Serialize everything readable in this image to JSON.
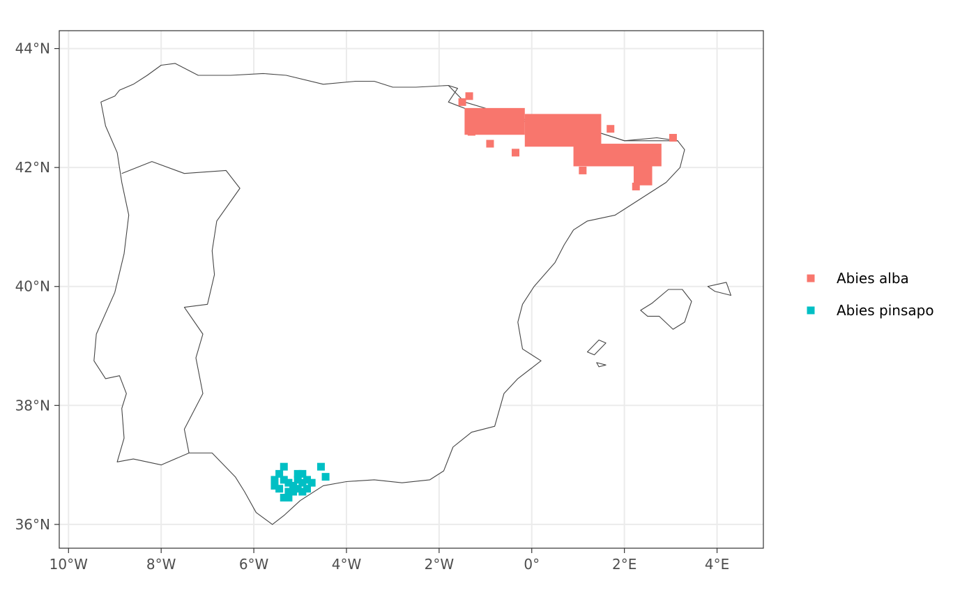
{
  "colors": {
    "panel_border": "#333333",
    "grid": "#ebebeb",
    "coastline": "#444444",
    "abies_alba": "#F8766D",
    "abies_pinsapo": "#00BFC4"
  },
  "chart_data": {
    "type": "scatter",
    "subtype": "map",
    "title": "",
    "xlabel": "",
    "ylabel": "",
    "xlim": [
      -10.2,
      5.0
    ],
    "ylim": [
      35.6,
      44.3
    ],
    "x_ticks": [
      -10,
      -8,
      -6,
      -4,
      -2,
      0,
      2,
      4
    ],
    "x_tick_labels": [
      "10°W",
      "8°W",
      "6°W",
      "4°W",
      "2°W",
      "0°",
      "2°E",
      "4°E"
    ],
    "y_ticks": [
      36,
      38,
      40,
      42,
      44
    ],
    "y_tick_labels": [
      "36°N",
      "38°N",
      "40°N",
      "42°N",
      "44°N"
    ],
    "grid": true,
    "legend_position": "right",
    "series": [
      {
        "name": "Abies alba",
        "color": "#F8766D",
        "marker": "square",
        "regions": [
          {
            "lon": [
              -1.45,
              -0.15
            ],
            "lat": [
              42.55,
              43.0
            ]
          },
          {
            "lon": [
              -0.15,
              1.5
            ],
            "lat": [
              42.35,
              42.9
            ]
          },
          {
            "lon": [
              0.9,
              2.8
            ],
            "lat": [
              42.02,
              42.4
            ]
          },
          {
            "lon": [
              2.2,
              2.6
            ],
            "lat": [
              41.7,
              42.1
            ]
          }
        ],
        "points": [
          {
            "lon": -1.5,
            "lat": 43.1
          },
          {
            "lon": -1.35,
            "lat": 43.2
          },
          {
            "lon": -0.9,
            "lat": 42.4
          },
          {
            "lon": -0.35,
            "lat": 42.25
          },
          {
            "lon": 1.1,
            "lat": 41.95
          },
          {
            "lon": 2.25,
            "lat": 41.68
          },
          {
            "lon": 3.05,
            "lat": 42.5
          },
          {
            "lon": 2.7,
            "lat": 42.3
          },
          {
            "lon": 1.7,
            "lat": 42.65
          },
          {
            "lon": -1.3,
            "lat": 42.6
          }
        ]
      },
      {
        "name": "Abies pinsapo",
        "color": "#00BFC4",
        "marker": "square",
        "points": [
          {
            "lon": -5.55,
            "lat": 36.75
          },
          {
            "lon": -5.55,
            "lat": 36.65
          },
          {
            "lon": -5.45,
            "lat": 36.85
          },
          {
            "lon": -5.45,
            "lat": 36.6
          },
          {
            "lon": -5.35,
            "lat": 36.97
          },
          {
            "lon": -5.35,
            "lat": 36.75
          },
          {
            "lon": -5.35,
            "lat": 36.45
          },
          {
            "lon": -5.25,
            "lat": 36.7
          },
          {
            "lon": -5.25,
            "lat": 36.55
          },
          {
            "lon": -5.25,
            "lat": 36.45
          },
          {
            "lon": -5.15,
            "lat": 36.65
          },
          {
            "lon": -5.15,
            "lat": 36.55
          },
          {
            "lon": -5.05,
            "lat": 36.85
          },
          {
            "lon": -5.05,
            "lat": 36.75
          },
          {
            "lon": -5.05,
            "lat": 36.6
          },
          {
            "lon": -4.95,
            "lat": 36.85
          },
          {
            "lon": -4.95,
            "lat": 36.7
          },
          {
            "lon": -4.95,
            "lat": 36.55
          },
          {
            "lon": -4.85,
            "lat": 36.75
          },
          {
            "lon": -4.85,
            "lat": 36.6
          },
          {
            "lon": -4.75,
            "lat": 36.7
          },
          {
            "lon": -4.55,
            "lat": 36.97
          },
          {
            "lon": -4.45,
            "lat": 36.8
          }
        ]
      }
    ],
    "coastlines": {
      "iberia": [
        [
          -9.3,
          43.1
        ],
        [
          -9.0,
          43.2
        ],
        [
          -8.9,
          43.3
        ],
        [
          -8.6,
          43.4
        ],
        [
          -8.3,
          43.55
        ],
        [
          -8.0,
          43.72
        ],
        [
          -7.7,
          43.75
        ],
        [
          -7.2,
          43.55
        ],
        [
          -6.5,
          43.55
        ],
        [
          -5.8,
          43.58
        ],
        [
          -5.3,
          43.55
        ],
        [
          -4.5,
          43.4
        ],
        [
          -3.8,
          43.45
        ],
        [
          -3.4,
          43.45
        ],
        [
          -3.0,
          43.35
        ],
        [
          -2.5,
          43.35
        ],
        [
          -1.8,
          43.38
        ],
        [
          -1.6,
          43.33
        ],
        [
          -1.8,
          43.1
        ],
        [
          -1.3,
          42.95
        ],
        [
          -0.8,
          42.8
        ],
        [
          -0.3,
          42.8
        ],
        [
          0.3,
          42.7
        ],
        [
          0.7,
          42.8
        ],
        [
          1.4,
          42.6
        ],
        [
          2.0,
          42.45
        ],
        [
          2.7,
          42.45
        ],
        [
          3.15,
          42.45
        ],
        [
          3.3,
          42.3
        ],
        [
          3.2,
          42.0
        ],
        [
          2.9,
          41.75
        ],
        [
          2.3,
          41.45
        ],
        [
          1.8,
          41.2
        ],
        [
          1.2,
          41.1
        ],
        [
          0.9,
          40.95
        ],
        [
          0.7,
          40.7
        ],
        [
          0.5,
          40.4
        ],
        [
          0.05,
          40.0
        ],
        [
          -0.2,
          39.7
        ],
        [
          -0.3,
          39.4
        ],
        [
          -0.2,
          38.95
        ],
        [
          0.2,
          38.75
        ],
        [
          -0.3,
          38.45
        ],
        [
          -0.6,
          38.2
        ],
        [
          -0.8,
          37.65
        ],
        [
          -1.3,
          37.55
        ],
        [
          -1.7,
          37.3
        ],
        [
          -1.9,
          36.9
        ],
        [
          -2.2,
          36.75
        ],
        [
          -2.8,
          36.7
        ],
        [
          -3.4,
          36.75
        ],
        [
          -4.0,
          36.72
        ],
        [
          -4.5,
          36.65
        ],
        [
          -5.0,
          36.4
        ],
        [
          -5.35,
          36.15
        ],
        [
          -5.6,
          36.0
        ],
        [
          -5.95,
          36.2
        ],
        [
          -6.2,
          36.55
        ],
        [
          -6.4,
          36.8
        ],
        [
          -6.9,
          37.2
        ],
        [
          -7.4,
          37.2
        ],
        [
          -8.0,
          37.0
        ],
        [
          -8.6,
          37.1
        ],
        [
          -8.95,
          37.05
        ],
        [
          -8.8,
          37.45
        ],
        [
          -8.85,
          37.95
        ],
        [
          -8.75,
          38.2
        ],
        [
          -8.9,
          38.5
        ],
        [
          -9.2,
          38.45
        ],
        [
          -9.45,
          38.75
        ],
        [
          -9.4,
          39.2
        ],
        [
          -9.0,
          39.9
        ],
        [
          -8.8,
          40.55
        ],
        [
          -8.7,
          41.2
        ],
        [
          -8.85,
          41.75
        ],
        [
          -8.95,
          42.25
        ],
        [
          -9.2,
          42.7
        ],
        [
          -9.3,
          43.1
        ]
      ],
      "mallorca": [
        [
          2.35,
          39.6
        ],
        [
          2.6,
          39.72
        ],
        [
          2.95,
          39.95
        ],
        [
          3.25,
          39.95
        ],
        [
          3.45,
          39.75
        ],
        [
          3.3,
          39.4
        ],
        [
          3.05,
          39.28
        ],
        [
          2.75,
          39.5
        ],
        [
          2.5,
          39.5
        ],
        [
          2.35,
          39.6
        ]
      ],
      "menorca": [
        [
          3.8,
          40.0
        ],
        [
          4.2,
          40.07
        ],
        [
          4.3,
          39.85
        ],
        [
          3.95,
          39.92
        ],
        [
          3.8,
          40.0
        ]
      ],
      "ibiza": [
        [
          1.2,
          38.9
        ],
        [
          1.45,
          39.1
        ],
        [
          1.6,
          39.05
        ],
        [
          1.35,
          38.85
        ],
        [
          1.2,
          38.9
        ]
      ],
      "formentera": [
        [
          1.4,
          38.72
        ],
        [
          1.6,
          38.68
        ],
        [
          1.45,
          38.65
        ],
        [
          1.4,
          38.72
        ]
      ]
    },
    "borders": {
      "portugal_spain": [
        [
          -8.85,
          41.9
        ],
        [
          -8.2,
          42.1
        ],
        [
          -7.5,
          41.9
        ],
        [
          -6.6,
          41.95
        ],
        [
          -6.3,
          41.65
        ],
        [
          -6.8,
          41.1
        ],
        [
          -6.9,
          40.6
        ],
        [
          -6.85,
          40.2
        ],
        [
          -7.0,
          39.7
        ],
        [
          -7.5,
          39.65
        ],
        [
          -7.1,
          39.2
        ],
        [
          -7.25,
          38.8
        ],
        [
          -7.1,
          38.2
        ],
        [
          -7.5,
          37.6
        ],
        [
          -7.4,
          37.2
        ]
      ],
      "france_spain": [
        [
          -1.8,
          43.38
        ],
        [
          -1.45,
          43.1
        ],
        [
          -0.8,
          42.95
        ],
        [
          -0.3,
          42.8
        ],
        [
          0.7,
          42.85
        ],
        [
          1.4,
          42.6
        ],
        [
          2.0,
          42.45
        ],
        [
          2.7,
          42.5
        ],
        [
          3.15,
          42.45
        ]
      ]
    }
  }
}
